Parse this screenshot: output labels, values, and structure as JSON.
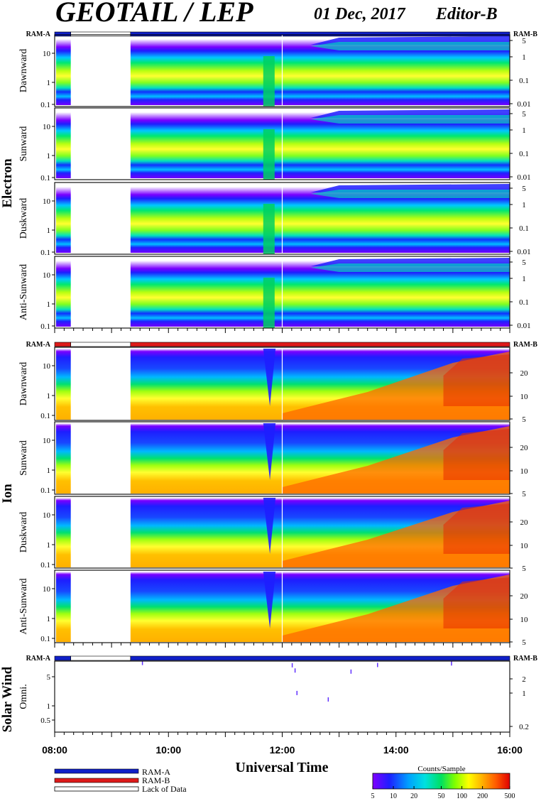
{
  "header": {
    "title": "GEOTAIL / LEP",
    "date": "01 Dec, 2017",
    "editor": "Editor-B"
  },
  "ram_a_label": "RAM-A",
  "ram_b_label": "RAM-B",
  "colors": {
    "ram_a": "#1020c8",
    "ram_b": "#dd1a1a",
    "lack_of_data": "#ffffff",
    "colorbar": [
      "#8000ff",
      "#1e1eff",
      "#00a0ff",
      "#00e0e0",
      "#00e060",
      "#80ff00",
      "#ffff00",
      "#ffb000",
      "#ff5a00",
      "#e00000"
    ]
  },
  "chart_data": [
    {
      "type": "heatmap",
      "group": "Electron",
      "panels": [
        "Dawnward",
        "Sunward",
        "Duskward",
        "Anti-Sunward"
      ],
      "x_range": [
        "08:00",
        "16:00"
      ],
      "ylim_left": [
        0.1,
        30
      ],
      "left_ticks": [
        "10",
        "1",
        "0.1"
      ],
      "right_ticks": [
        "5",
        "1",
        "0.1",
        "0.01"
      ],
      "yscale": "log",
      "ram_bar": [
        {
          "from": "08:00",
          "to": "08:17",
          "state": "RAM-A"
        },
        {
          "from": "08:17",
          "to": "09:20",
          "state": "Lack of Data"
        },
        {
          "from": "09:20",
          "to": "16:00",
          "state": "RAM-A"
        }
      ],
      "data_gap": [
        "08:17",
        "09:20"
      ]
    },
    {
      "type": "heatmap",
      "group": "Ion",
      "panels": [
        "Dawnward",
        "Sunward",
        "Duskward",
        "Anti-Sunward"
      ],
      "x_range": [
        "08:00",
        "16:00"
      ],
      "ylim_left": [
        0.08,
        40
      ],
      "left_ticks": [
        "10",
        "1",
        "0.1"
      ],
      "right_ticks": [
        "20",
        "10",
        "5"
      ],
      "yscale": "log",
      "ram_bar": [
        {
          "from": "08:00",
          "to": "08:17",
          "state": "RAM-B"
        },
        {
          "from": "08:17",
          "to": "09:20",
          "state": "Lack of Data"
        },
        {
          "from": "09:20",
          "to": "16:00",
          "state": "RAM-B"
        }
      ],
      "data_gap": [
        "08:17",
        "09:20"
      ]
    },
    {
      "type": "scatter",
      "group": "Solar Wind",
      "panels": [
        "Omni."
      ],
      "x_range": [
        "08:00",
        "16:00"
      ],
      "left_ticks": [
        "5",
        "1",
        "0.5"
      ],
      "right_ticks": [
        "2",
        "1",
        "0.2"
      ],
      "yscale": "log",
      "ram_bar": [
        {
          "from": "08:00",
          "to": "08:17",
          "state": "RAM-A"
        },
        {
          "from": "08:17",
          "to": "09:20",
          "state": "Lack of Data"
        },
        {
          "from": "09:20",
          "to": "16:00",
          "state": "RAM-A"
        }
      ],
      "points": [
        {
          "x": "09:32",
          "y": 8.2
        },
        {
          "x": "12:10",
          "y": 7.3
        },
        {
          "x": "12:13",
          "y": 5.6
        },
        {
          "x": "12:15",
          "y": 1.8
        },
        {
          "x": "12:48",
          "y": 1.3
        },
        {
          "x": "13:12",
          "y": 5.3
        },
        {
          "x": "13:40",
          "y": 7.4
        },
        {
          "x": "14:58",
          "y": 8.0
        }
      ]
    }
  ],
  "x_axis": {
    "tick_labels": [
      "08:00",
      "10:00",
      "12:00",
      "14:00",
      "16:00"
    ],
    "label": "Universal Time"
  },
  "legend": [
    {
      "label": "RAM-A",
      "color": "#1020c8"
    },
    {
      "label": "RAM-B",
      "color": "#dd1a1a"
    },
    {
      "label": "Lack of Data",
      "color": "#ffffff"
    }
  ],
  "colorbar": {
    "title": "Counts/Sample",
    "tick_labels": [
      "5",
      "10",
      "20",
      "50",
      "100",
      "200",
      "500"
    ]
  }
}
